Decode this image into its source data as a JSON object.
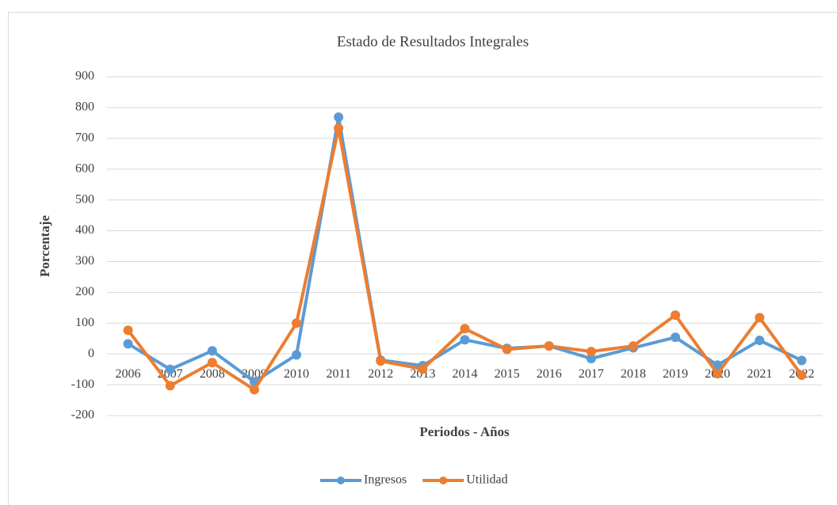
{
  "chart_data": {
    "type": "line",
    "title": "Estado de Resultados Integrales",
    "x_label": "Periodos - Años",
    "y_label": "Porcentaje",
    "categories": [
      "2006",
      "2007",
      "2008",
      "2009",
      "2010",
      "2011",
      "2012",
      "2013",
      "2014",
      "2015",
      "2016",
      "2017",
      "2018",
      "2019",
      "2020",
      "2021",
      "2022"
    ],
    "series": [
      {
        "name": "Ingresos",
        "color": "#5b9bd5",
        "values": [
          33,
          -50,
          10,
          -90,
          -3,
          769,
          -20,
          -38,
          46,
          18,
          26,
          -15,
          20,
          54,
          -36,
          44,
          -21
        ]
      },
      {
        "name": "Utilidad",
        "color": "#ed7d31",
        "values": [
          77,
          -103,
          -28,
          -116,
          100,
          733,
          -23,
          -49,
          82,
          15,
          26,
          8,
          26,
          126,
          -64,
          118,
          -69
        ]
      }
    ],
    "ylim": [
      -200,
      900
    ],
    "yticks": [
      -200,
      -100,
      0,
      100,
      200,
      300,
      400,
      500,
      600,
      700,
      800,
      900
    ],
    "grid": true,
    "legend": "bottom"
  }
}
